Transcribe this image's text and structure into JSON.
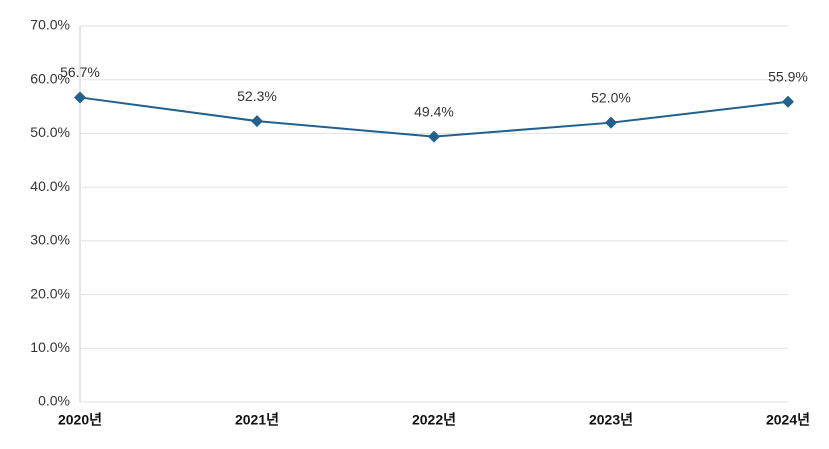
{
  "chart_data": {
    "type": "line",
    "categories": [
      "2020년",
      "2021년",
      "2022년",
      "2023년",
      "2024년"
    ],
    "series": [
      {
        "color": "#22608d",
        "values": [
          56.7,
          52.3,
          49.4,
          52.0,
          55.9
        ],
        "value_labels": [
          "56.7%",
          "52.3%",
          "49.4%",
          "52.0%",
          "55.9%"
        ]
      }
    ],
    "ylim": [
      0,
      70
    ],
    "yticks": [
      {
        "value": 0,
        "label": "0.0%"
      },
      {
        "value": 10,
        "label": "10.0%"
      },
      {
        "value": 20,
        "label": "20.0%"
      },
      {
        "value": 30,
        "label": "30.0%"
      },
      {
        "value": 40,
        "label": "40.0%"
      },
      {
        "value": 50,
        "label": "50.0%"
      },
      {
        "value": 60,
        "label": "60.0%"
      },
      {
        "value": 70,
        "label": "70.0%"
      }
    ],
    "grid": true
  }
}
